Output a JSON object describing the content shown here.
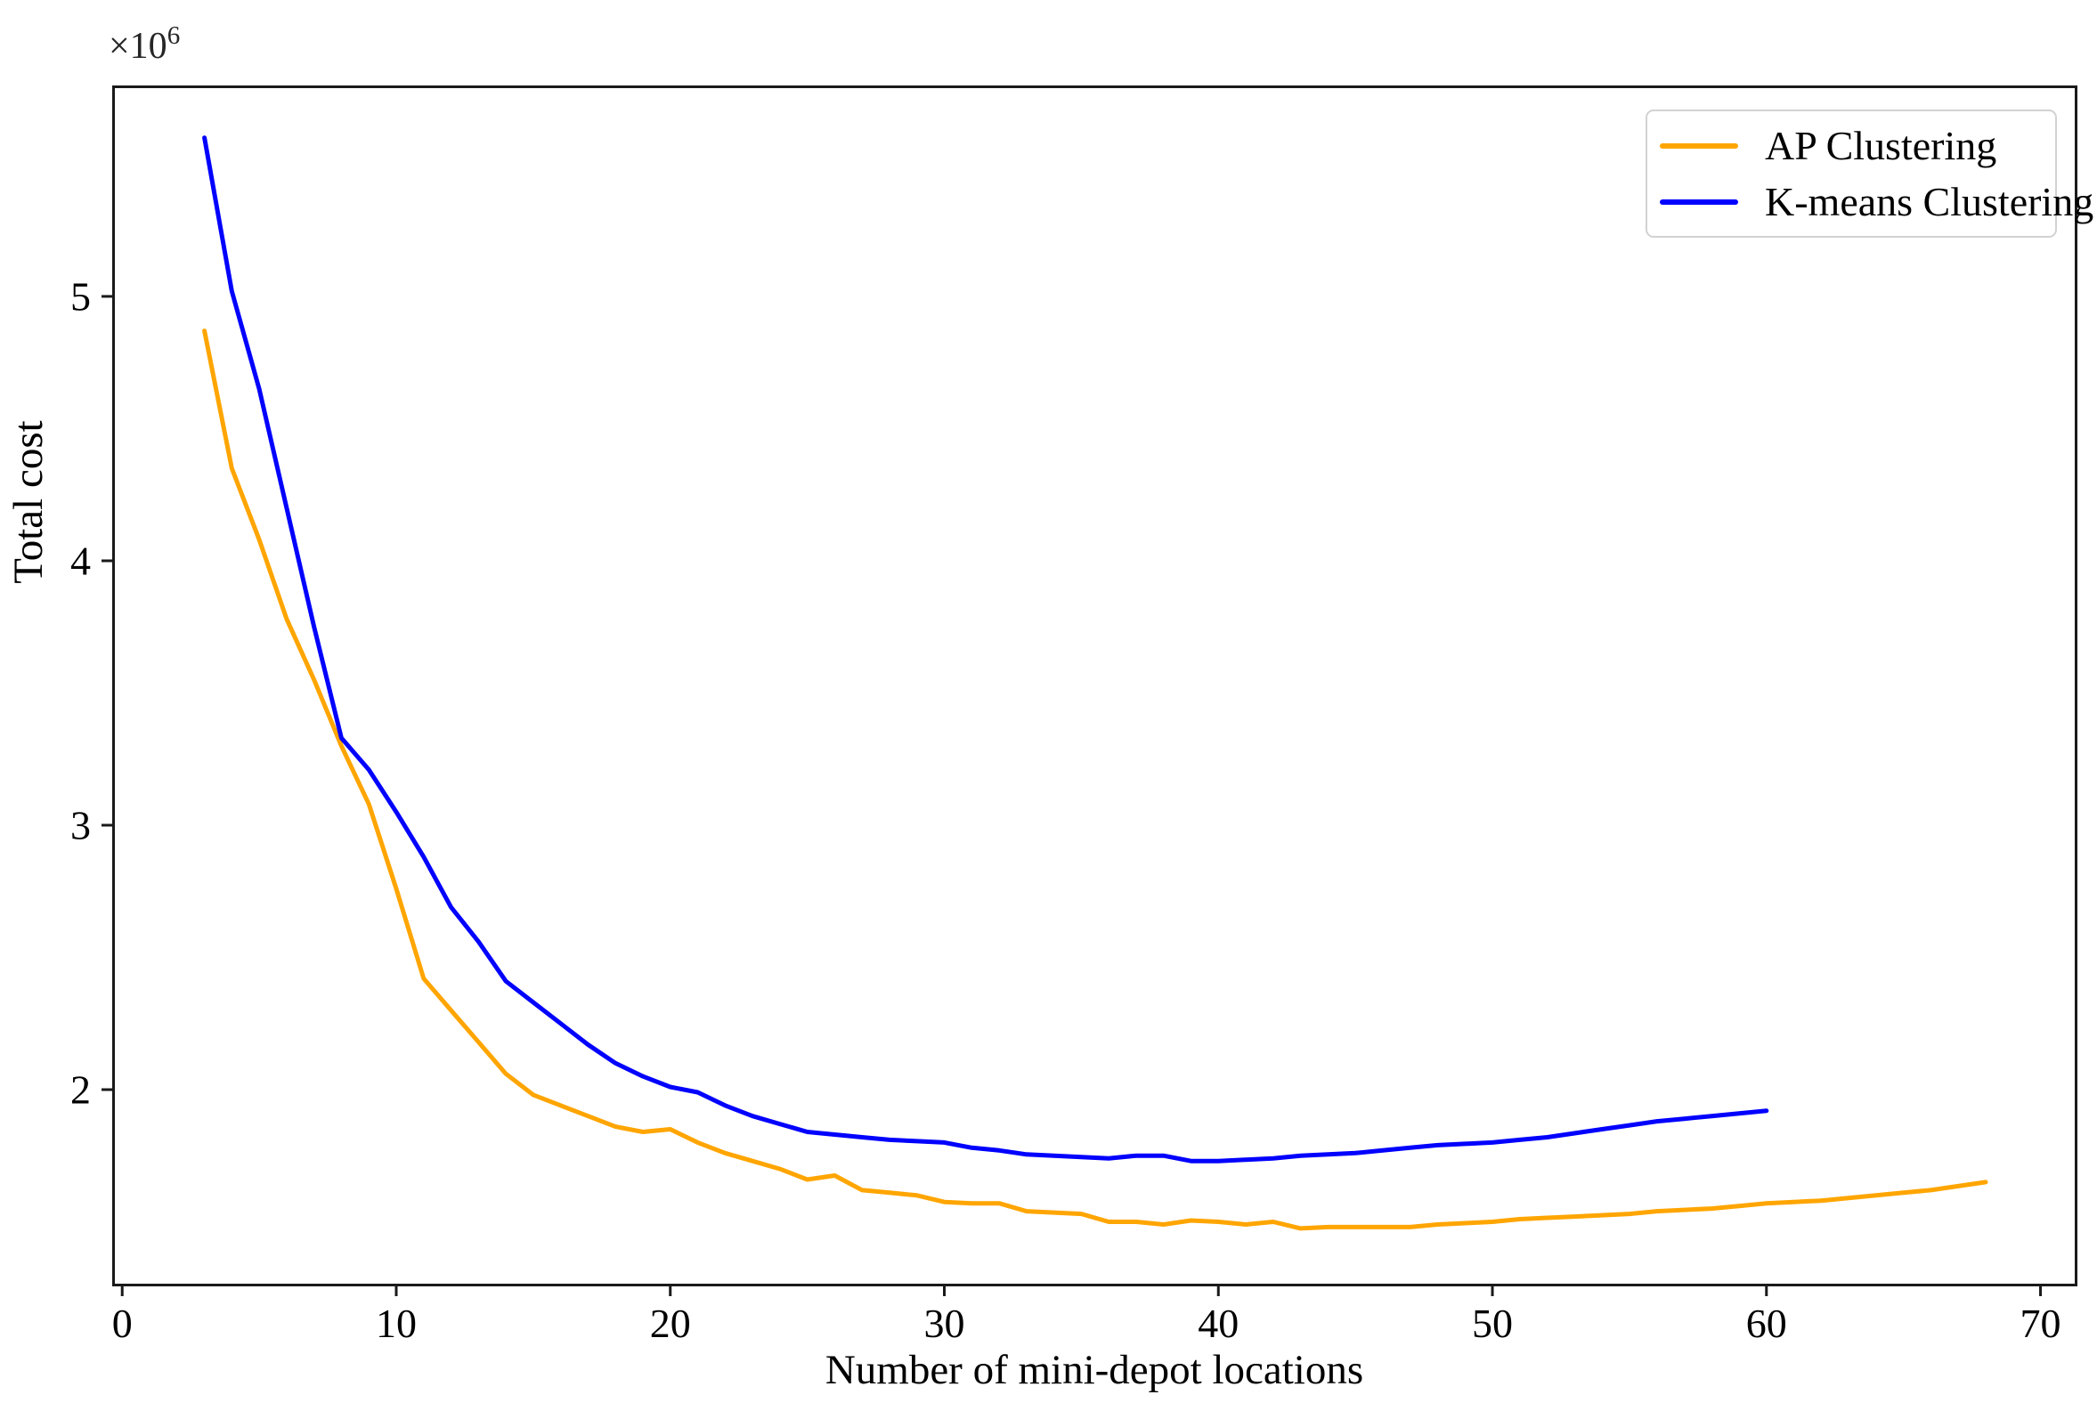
{
  "figure": {
    "background": "#ffffff",
    "spine_color": "#1a1a1a",
    "tick_color": "#1a1a1a"
  },
  "chart_data": {
    "type": "line",
    "title": "",
    "xlabel": "Number of mini-depot locations",
    "ylabel": "Total cost",
    "y_offset_text": {
      "base": "×10",
      "exponent": "6"
    },
    "y_unit_scale": 1000000,
    "axes": {
      "xlim": [
        -0.3,
        71.25
      ],
      "ylim_millions": [
        1.266,
        5.791
      ],
      "xticks": [
        0,
        10,
        20,
        30,
        40,
        50,
        60,
        70
      ],
      "yticks_millions": [
        2,
        3,
        4,
        5
      ],
      "grid": false
    },
    "legend": {
      "position": "upper right",
      "border_color": "#d2d2d2"
    },
    "series": [
      {
        "name": "AP Clustering",
        "color": "#FFA500",
        "x": [
          3,
          4,
          5,
          6,
          7,
          8,
          9,
          10,
          11,
          12,
          13,
          14,
          15,
          16,
          17,
          18,
          19,
          20,
          21,
          22,
          23,
          24,
          25,
          26,
          27,
          28,
          29,
          30,
          31,
          32,
          33,
          34,
          35,
          36,
          37,
          38,
          39,
          40,
          41,
          42,
          43,
          44,
          45,
          46,
          47,
          48,
          49,
          50,
          51,
          52,
          53,
          54,
          55,
          56,
          57,
          58,
          59,
          60,
          61,
          62,
          63,
          64,
          65,
          66,
          67,
          68
        ],
        "y_millions": [
          4.87,
          4.35,
          4.08,
          3.78,
          3.55,
          3.3,
          3.08,
          2.76,
          2.42,
          2.3,
          2.18,
          2.06,
          1.98,
          1.94,
          1.9,
          1.86,
          1.84,
          1.85,
          1.8,
          1.76,
          1.73,
          1.7,
          1.66,
          1.675,
          1.62,
          1.61,
          1.6,
          1.575,
          1.57,
          1.57,
          1.54,
          1.535,
          1.53,
          1.5,
          1.5,
          1.49,
          1.505,
          1.5,
          1.49,
          1.5,
          1.475,
          1.48,
          1.48,
          1.48,
          1.48,
          1.49,
          1.495,
          1.5,
          1.51,
          1.515,
          1.52,
          1.525,
          1.53,
          1.54,
          1.545,
          1.55,
          1.56,
          1.57,
          1.575,
          1.58,
          1.59,
          1.6,
          1.61,
          1.62,
          1.635,
          1.65
        ]
      },
      {
        "name": "K-means Clustering",
        "color": "#0000FF",
        "x": [
          3,
          4,
          5,
          6,
          7,
          8,
          9,
          10,
          11,
          12,
          13,
          14,
          15,
          16,
          17,
          18,
          19,
          20,
          21,
          22,
          23,
          24,
          25,
          26,
          27,
          28,
          29,
          30,
          31,
          32,
          33,
          34,
          35,
          36,
          37,
          38,
          39,
          40,
          41,
          42,
          43,
          44,
          45,
          46,
          47,
          48,
          49,
          50,
          51,
          52,
          53,
          54,
          55,
          56,
          57,
          58,
          59,
          60
        ],
        "y_millions": [
          5.6,
          5.02,
          4.65,
          4.2,
          3.75,
          3.33,
          3.21,
          3.05,
          2.88,
          2.69,
          2.56,
          2.41,
          2.33,
          2.25,
          2.17,
          2.1,
          2.05,
          2.01,
          1.99,
          1.94,
          1.9,
          1.87,
          1.84,
          1.83,
          1.82,
          1.81,
          1.805,
          1.8,
          1.78,
          1.77,
          1.755,
          1.75,
          1.745,
          1.74,
          1.75,
          1.75,
          1.73,
          1.73,
          1.735,
          1.74,
          1.75,
          1.755,
          1.76,
          1.77,
          1.78,
          1.79,
          1.795,
          1.8,
          1.81,
          1.82,
          1.835,
          1.85,
          1.865,
          1.88,
          1.89,
          1.9,
          1.91,
          1.92
        ]
      }
    ]
  }
}
